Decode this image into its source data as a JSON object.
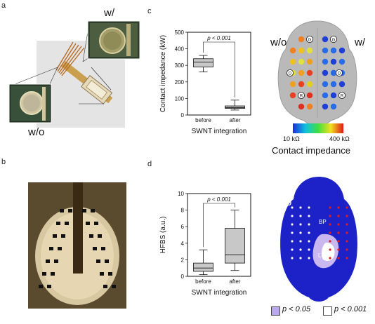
{
  "panels": {
    "a": {
      "label": "a",
      "w_label": "w/",
      "wo_label": "w/o"
    },
    "b": {
      "label": "b"
    },
    "c": {
      "label": "c",
      "map_wo": "w/o",
      "map_w": "w/",
      "colorbar_min": "10 kΩ",
      "colorbar_max": "400 kΩ",
      "map_title": "Contact impedance",
      "markers": [
        "G",
        "G",
        "D",
        "R",
        "D",
        "R"
      ]
    },
    "d": {
      "label": "d",
      "map_wo": "w/o",
      "map_w": "w/",
      "region_bp": "BP",
      "region_lp": "LP",
      "legend_p05": "p < 0.05",
      "legend_p001": "p < 0.001"
    }
  },
  "chart_data": [
    {
      "type": "box",
      "panel": "c",
      "ylabel": "Contact impedance (kW)",
      "xlabel": "SWNT integration",
      "categories": [
        "before",
        "after"
      ],
      "ylim": [
        0,
        500
      ],
      "yticks": [
        0,
        100,
        200,
        300,
        400,
        500
      ],
      "boxes": [
        {
          "name": "before",
          "whisker_low": 260,
          "q1": 290,
          "median": 320,
          "q3": 340,
          "whisker_high": 360
        },
        {
          "name": "after",
          "whisker_low": 30,
          "q1": 40,
          "median": 45,
          "q3": 55,
          "whisker_high": 90
        }
      ],
      "annotation": "p < 0.001"
    },
    {
      "type": "box",
      "panel": "d",
      "ylabel": "HFBS (a.u.)",
      "xlabel": "SWNT integration",
      "categories": [
        "before",
        "after"
      ],
      "ylim": [
        0,
        10
      ],
      "yticks": [
        0,
        2,
        4,
        6,
        8,
        10
      ],
      "boxes": [
        {
          "name": "before",
          "whisker_low": 0.2,
          "q1": 0.6,
          "median": 1.0,
          "q3": 1.6,
          "whisker_high": 3.2
        },
        {
          "name": "after",
          "whisker_low": 0.7,
          "q1": 1.6,
          "median": 2.6,
          "q3": 5.8,
          "whisker_high": 8.0
        }
      ],
      "annotation": "p < 0.001"
    }
  ],
  "colors": {
    "bg": "#ffffff",
    "brain_gray": "#b9b9b9",
    "brain_blue": "#1c22c8",
    "sig_light": "#c9b8f0",
    "sig_strong": "#ffffff",
    "dots_red": "#e21d1d",
    "box_fill": "#c8c8c8",
    "dark_blue_dot": "#1f3fd6"
  }
}
